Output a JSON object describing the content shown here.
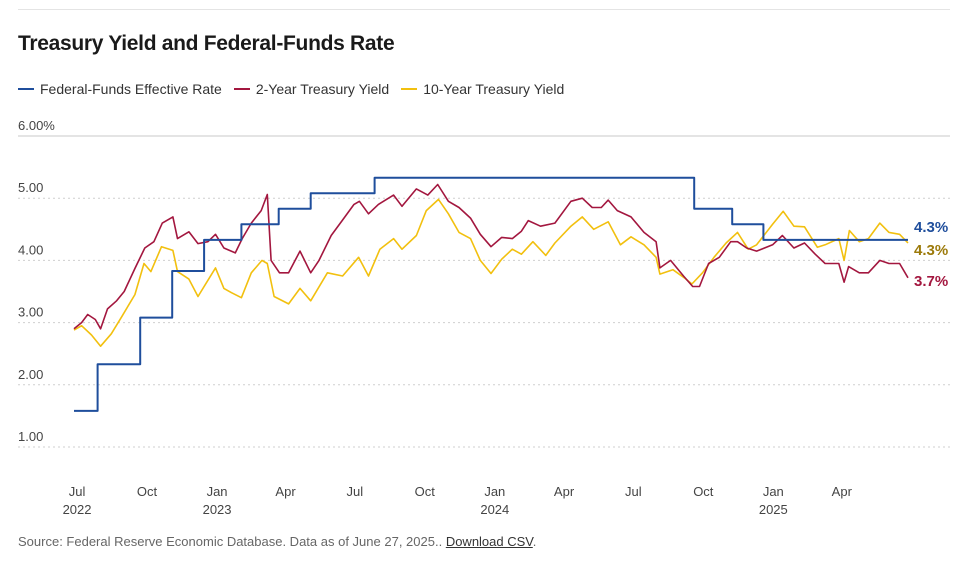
{
  "title": "Treasury Yield and Federal-Funds Rate",
  "legend": [
    {
      "label": "Federal-Funds Effective Rate",
      "color": "#1f4e9c"
    },
    {
      "label": "2-Year Treasury Yield",
      "color": "#a3173f"
    },
    {
      "label": "10-Year Treasury Yield",
      "color": "#f2c00f"
    }
  ],
  "source": {
    "text": "Source: Federal Reserve Economic Database. Data as of June 27, 2025..",
    "link": "Download CSV",
    "suffix": "."
  },
  "chart_data": {
    "type": "line",
    "title": "Treasury Yield and Federal-Funds Rate",
    "xlabel": "",
    "ylabel": "",
    "ylim": [
      0.5,
      6.0
    ],
    "grid": true,
    "legend_position": "top-left",
    "y_ticks": [
      {
        "value": 6.0,
        "label": "6.00%"
      },
      {
        "value": 5.0,
        "label": "5.00"
      },
      {
        "value": 4.0,
        "label": "4.00"
      },
      {
        "value": 3.0,
        "label": "3.00"
      },
      {
        "value": 2.0,
        "label": "2.00"
      },
      {
        "value": 1.0,
        "label": "1.00"
      }
    ],
    "x_ticks": [
      {
        "date": "2022-07-01",
        "label": "Jul",
        "year": "2022"
      },
      {
        "date": "2022-10-01",
        "label": "Oct",
        "year": ""
      },
      {
        "date": "2023-01-01",
        "label": "Jan",
        "year": "2023"
      },
      {
        "date": "2023-04-01",
        "label": "Apr",
        "year": ""
      },
      {
        "date": "2023-07-01",
        "label": "Jul",
        "year": ""
      },
      {
        "date": "2023-10-01",
        "label": "Oct",
        "year": ""
      },
      {
        "date": "2024-01-01",
        "label": "Jan",
        "year": "2024"
      },
      {
        "date": "2024-04-01",
        "label": "Apr",
        "year": ""
      },
      {
        "date": "2024-07-01",
        "label": "Jul",
        "year": ""
      },
      {
        "date": "2024-10-01",
        "label": "Oct",
        "year": ""
      },
      {
        "date": "2025-01-01",
        "label": "Jan",
        "year": "2025"
      },
      {
        "date": "2025-04-01",
        "label": "Apr",
        "year": ""
      }
    ],
    "series": [
      {
        "name": "Federal-Funds Effective Rate",
        "color": "#1f4e9c",
        "step": true,
        "end_label": "4.3%",
        "points": [
          [
            "2022-06-27",
            1.58
          ],
          [
            "2022-07-28",
            2.33
          ],
          [
            "2022-09-22",
            3.08
          ],
          [
            "2022-11-03",
            3.83
          ],
          [
            "2022-12-15",
            4.33
          ],
          [
            "2023-02-02",
            4.58
          ],
          [
            "2023-03-23",
            4.83
          ],
          [
            "2023-05-04",
            5.08
          ],
          [
            "2023-07-27",
            5.33
          ],
          [
            "2024-09-19",
            4.83
          ],
          [
            "2024-11-08",
            4.58
          ],
          [
            "2024-12-19",
            4.33
          ],
          [
            "2025-06-27",
            4.33
          ]
        ]
      },
      {
        "name": "2-Year Treasury Yield",
        "color": "#a3173f",
        "step": false,
        "end_label": "3.7%",
        "points": [
          [
            "2022-06-27",
            2.9
          ],
          [
            "2022-07-07",
            3.0
          ],
          [
            "2022-07-15",
            3.13
          ],
          [
            "2022-07-25",
            3.05
          ],
          [
            "2022-08-01",
            2.9
          ],
          [
            "2022-08-10",
            3.22
          ],
          [
            "2022-08-22",
            3.35
          ],
          [
            "2022-09-01",
            3.5
          ],
          [
            "2022-09-15",
            3.87
          ],
          [
            "2022-09-28",
            4.2
          ],
          [
            "2022-10-10",
            4.3
          ],
          [
            "2022-10-21",
            4.6
          ],
          [
            "2022-11-04",
            4.7
          ],
          [
            "2022-11-10",
            4.35
          ],
          [
            "2022-11-25",
            4.46
          ],
          [
            "2022-12-07",
            4.27
          ],
          [
            "2022-12-20",
            4.3
          ],
          [
            "2022-12-30",
            4.42
          ],
          [
            "2023-01-10",
            4.2
          ],
          [
            "2023-01-25",
            4.12
          ],
          [
            "2023-02-03",
            4.35
          ],
          [
            "2023-02-15",
            4.6
          ],
          [
            "2023-02-28",
            4.8
          ],
          [
            "2023-03-08",
            5.06
          ],
          [
            "2023-03-13",
            4.0
          ],
          [
            "2023-03-24",
            3.8
          ],
          [
            "2023-04-05",
            3.8
          ],
          [
            "2023-04-20",
            4.15
          ],
          [
            "2023-05-04",
            3.8
          ],
          [
            "2023-05-15",
            4.0
          ],
          [
            "2023-05-31",
            4.4
          ],
          [
            "2023-06-15",
            4.65
          ],
          [
            "2023-06-30",
            4.9
          ],
          [
            "2023-07-07",
            4.95
          ],
          [
            "2023-07-19",
            4.75
          ],
          [
            "2023-08-01",
            4.9
          ],
          [
            "2023-08-21",
            5.05
          ],
          [
            "2023-09-01",
            4.87
          ],
          [
            "2023-09-20",
            5.15
          ],
          [
            "2023-10-05",
            5.05
          ],
          [
            "2023-10-18",
            5.22
          ],
          [
            "2023-11-01",
            4.95
          ],
          [
            "2023-11-15",
            4.85
          ],
          [
            "2023-11-30",
            4.68
          ],
          [
            "2023-12-13",
            4.42
          ],
          [
            "2023-12-27",
            4.22
          ],
          [
            "2024-01-10",
            4.37
          ],
          [
            "2024-01-24",
            4.35
          ],
          [
            "2024-02-05",
            4.47
          ],
          [
            "2024-02-14",
            4.64
          ],
          [
            "2024-03-01",
            4.55
          ],
          [
            "2024-03-20",
            4.6
          ],
          [
            "2024-04-10",
            4.95
          ],
          [
            "2024-04-25",
            5.0
          ],
          [
            "2024-05-08",
            4.85
          ],
          [
            "2024-05-20",
            4.85
          ],
          [
            "2024-05-29",
            4.97
          ],
          [
            "2024-06-10",
            4.8
          ],
          [
            "2024-06-28",
            4.7
          ],
          [
            "2024-07-15",
            4.45
          ],
          [
            "2024-07-31",
            4.3
          ],
          [
            "2024-08-05",
            3.88
          ],
          [
            "2024-08-19",
            4.0
          ],
          [
            "2024-09-05",
            3.75
          ],
          [
            "2024-09-17",
            3.58
          ],
          [
            "2024-09-26",
            3.58
          ],
          [
            "2024-10-08",
            3.95
          ],
          [
            "2024-10-22",
            4.05
          ],
          [
            "2024-11-06",
            4.3
          ],
          [
            "2024-11-15",
            4.3
          ],
          [
            "2024-11-27",
            4.2
          ],
          [
            "2024-12-10",
            4.15
          ],
          [
            "2024-12-31",
            4.25
          ],
          [
            "2025-01-13",
            4.4
          ],
          [
            "2025-01-28",
            4.2
          ],
          [
            "2025-02-11",
            4.28
          ],
          [
            "2025-02-25",
            4.1
          ],
          [
            "2025-03-10",
            3.95
          ],
          [
            "2025-03-28",
            3.95
          ],
          [
            "2025-04-04",
            3.65
          ],
          [
            "2025-04-10",
            3.9
          ],
          [
            "2025-04-24",
            3.8
          ],
          [
            "2025-05-06",
            3.8
          ],
          [
            "2025-05-21",
            4.0
          ],
          [
            "2025-06-02",
            3.95
          ],
          [
            "2025-06-16",
            3.95
          ],
          [
            "2025-06-27",
            3.72
          ]
        ]
      },
      {
        "name": "10-Year Treasury Yield",
        "color": "#f2c00f",
        "step": false,
        "end_label": "4.3%",
        "points": [
          [
            "2022-06-27",
            2.88
          ],
          [
            "2022-07-07",
            2.95
          ],
          [
            "2022-07-20",
            2.8
          ],
          [
            "2022-08-01",
            2.62
          ],
          [
            "2022-08-15",
            2.82
          ],
          [
            "2022-08-29",
            3.1
          ],
          [
            "2022-09-15",
            3.45
          ],
          [
            "2022-09-27",
            3.95
          ],
          [
            "2022-10-06",
            3.82
          ],
          [
            "2022-10-20",
            4.22
          ],
          [
            "2022-11-04",
            4.16
          ],
          [
            "2022-11-10",
            3.82
          ],
          [
            "2022-11-25",
            3.7
          ],
          [
            "2022-12-07",
            3.42
          ],
          [
            "2022-12-20",
            3.68
          ],
          [
            "2022-12-30",
            3.88
          ],
          [
            "2023-01-10",
            3.55
          ],
          [
            "2023-01-20",
            3.48
          ],
          [
            "2023-02-02",
            3.4
          ],
          [
            "2023-02-15",
            3.8
          ],
          [
            "2023-03-01",
            4.0
          ],
          [
            "2023-03-08",
            3.95
          ],
          [
            "2023-03-17",
            3.42
          ],
          [
            "2023-04-05",
            3.3
          ],
          [
            "2023-04-20",
            3.55
          ],
          [
            "2023-05-04",
            3.35
          ],
          [
            "2023-05-26",
            3.8
          ],
          [
            "2023-06-15",
            3.75
          ],
          [
            "2023-07-06",
            4.05
          ],
          [
            "2023-07-19",
            3.75
          ],
          [
            "2023-08-03",
            4.18
          ],
          [
            "2023-08-21",
            4.35
          ],
          [
            "2023-09-01",
            4.18
          ],
          [
            "2023-09-20",
            4.4
          ],
          [
            "2023-10-03",
            4.8
          ],
          [
            "2023-10-19",
            4.98
          ],
          [
            "2023-11-01",
            4.75
          ],
          [
            "2023-11-15",
            4.45
          ],
          [
            "2023-11-30",
            4.35
          ],
          [
            "2023-12-13",
            4.0
          ],
          [
            "2023-12-27",
            3.79
          ],
          [
            "2024-01-10",
            4.02
          ],
          [
            "2024-01-24",
            4.18
          ],
          [
            "2024-02-05",
            4.1
          ],
          [
            "2024-02-20",
            4.3
          ],
          [
            "2024-03-08",
            4.08
          ],
          [
            "2024-03-20",
            4.28
          ],
          [
            "2024-04-10",
            4.55
          ],
          [
            "2024-04-25",
            4.7
          ],
          [
            "2024-05-10",
            4.5
          ],
          [
            "2024-05-29",
            4.62
          ],
          [
            "2024-06-14",
            4.25
          ],
          [
            "2024-06-28",
            4.38
          ],
          [
            "2024-07-15",
            4.25
          ],
          [
            "2024-07-31",
            4.05
          ],
          [
            "2024-08-05",
            3.78
          ],
          [
            "2024-08-22",
            3.85
          ],
          [
            "2024-09-06",
            3.72
          ],
          [
            "2024-09-16",
            3.62
          ],
          [
            "2024-09-30",
            3.8
          ],
          [
            "2024-10-15",
            4.05
          ],
          [
            "2024-10-31",
            4.28
          ],
          [
            "2024-11-15",
            4.45
          ],
          [
            "2024-11-29",
            4.18
          ],
          [
            "2024-12-10",
            4.25
          ],
          [
            "2024-12-31",
            4.58
          ],
          [
            "2025-01-14",
            4.79
          ],
          [
            "2025-01-28",
            4.55
          ],
          [
            "2025-02-11",
            4.54
          ],
          [
            "2025-02-28",
            4.21
          ],
          [
            "2025-03-10",
            4.25
          ],
          [
            "2025-03-28",
            4.35
          ],
          [
            "2025-04-04",
            4.0
          ],
          [
            "2025-04-11",
            4.48
          ],
          [
            "2025-04-24",
            4.3
          ],
          [
            "2025-05-06",
            4.35
          ],
          [
            "2025-05-21",
            4.6
          ],
          [
            "2025-06-02",
            4.45
          ],
          [
            "2025-06-16",
            4.42
          ],
          [
            "2025-06-27",
            4.28
          ]
        ]
      }
    ]
  }
}
